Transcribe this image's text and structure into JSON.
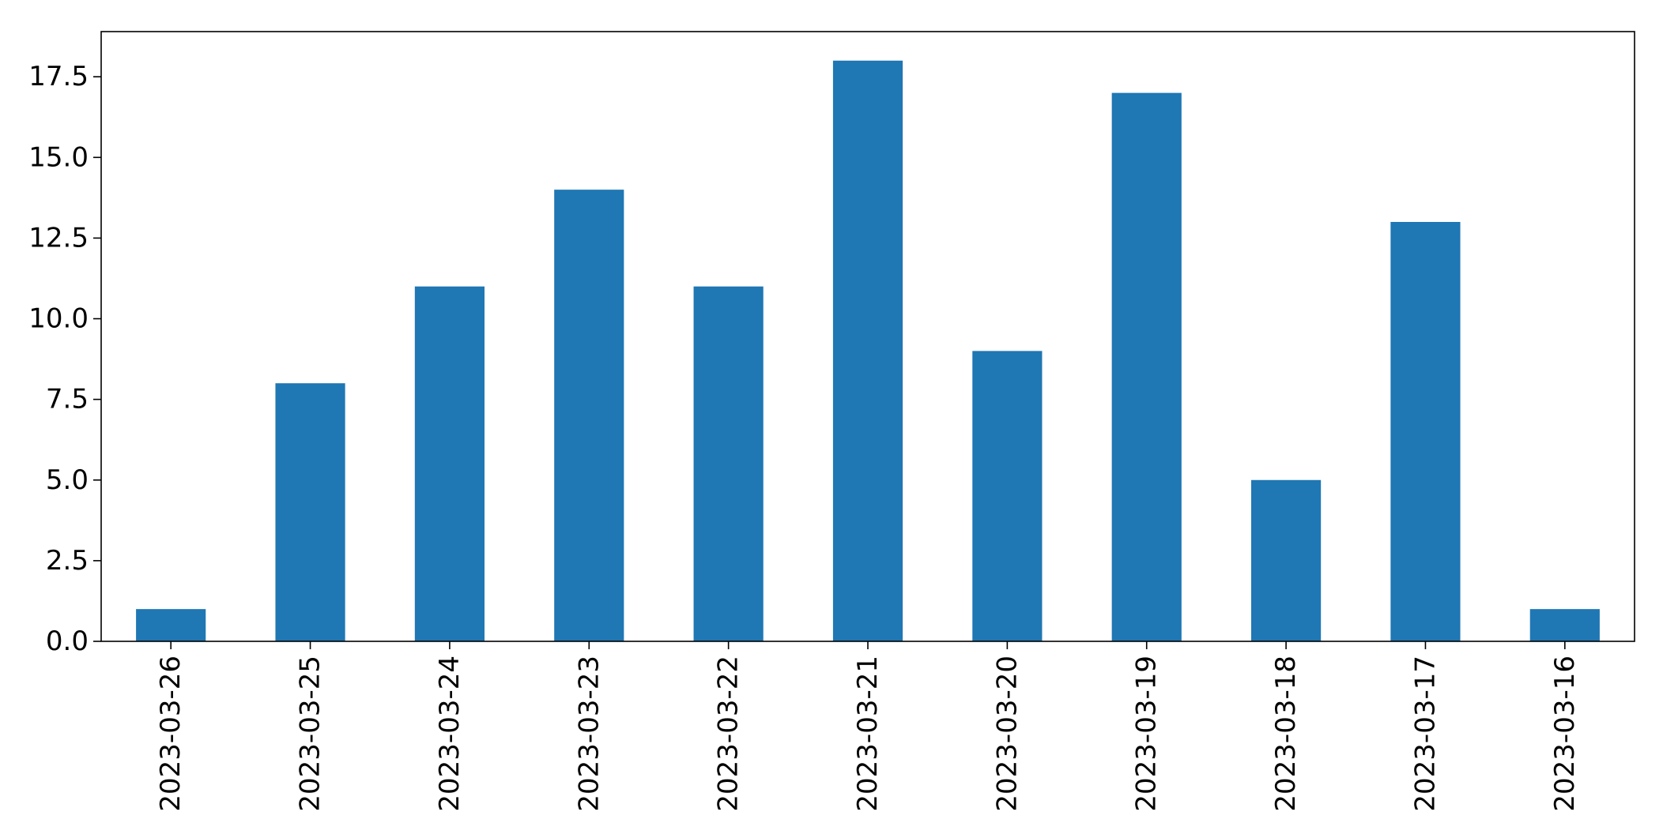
{
  "chart_data": {
    "type": "bar",
    "title": "",
    "xlabel": "",
    "ylabel": "",
    "categories": [
      "2023-03-26",
      "2023-03-25",
      "2023-03-24",
      "2023-03-23",
      "2023-03-22",
      "2023-03-21",
      "2023-03-20",
      "2023-03-19",
      "2023-03-18",
      "2023-03-17",
      "2023-03-16"
    ],
    "values": [
      1,
      8,
      11,
      14,
      11,
      18,
      9,
      17,
      5,
      13,
      1
    ],
    "ylim": [
      0,
      18.9
    ],
    "yticks": [
      "0.0",
      "2.5",
      "5.0",
      "7.5",
      "10.0",
      "12.5",
      "15.0",
      "17.5"
    ],
    "grid": false,
    "legend": "none",
    "bar_color": "#1f77b4",
    "axis_color": "#000000"
  }
}
